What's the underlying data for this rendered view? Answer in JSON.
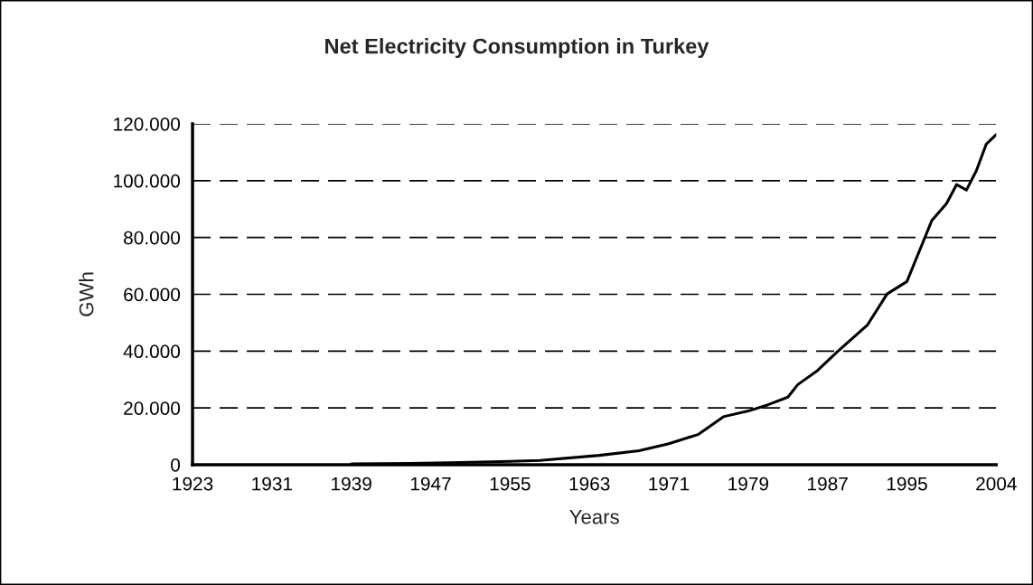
{
  "chart_data": {
    "type": "line",
    "title": "Net Electricity Consumption in Turkey",
    "xlabel": "Years",
    "ylabel": "GWh",
    "x": [
      1939,
      1945,
      1950,
      1955,
      1958,
      1964,
      1968,
      1971,
      1974,
      1976.5,
      1979,
      1981,
      1983,
      1984,
      1986,
      1988,
      1991,
      1993,
      1995,
      1997.5,
      1999,
      2000,
      2001,
      2002,
      2003,
      2004
    ],
    "series": [
      {
        "color": "#000000",
        "values": [
          300,
          500,
          800,
          1200,
          1500,
          3300,
          4900,
          7400,
          10700,
          16900,
          18900,
          21100,
          23800,
          28200,
          33200,
          39800,
          49100,
          60100,
          64500,
          85900,
          92000,
          98600,
          96700,
          103500,
          112900,
          116200
        ]
      }
    ],
    "xlim": [
      1923,
      2004
    ],
    "xticks": [
      1923,
      1931,
      1939,
      1947,
      1955,
      1963,
      1971,
      1979,
      1987,
      1995,
      2004
    ],
    "ylim": [
      0,
      120000
    ],
    "yticks": [
      0,
      {
        "value": 20000,
        "label": "20.000"
      },
      {
        "value": 40000,
        "label": "40.000"
      },
      {
        "value": 60000,
        "label": "60.000"
      },
      {
        "value": 80000,
        "label": "80.000"
      },
      {
        "value": 100000,
        "label": "100.000"
      },
      {
        "value": 120000,
        "label": "120.000"
      }
    ],
    "grid": "y",
    "line_style": "solid",
    "marker": "none"
  }
}
